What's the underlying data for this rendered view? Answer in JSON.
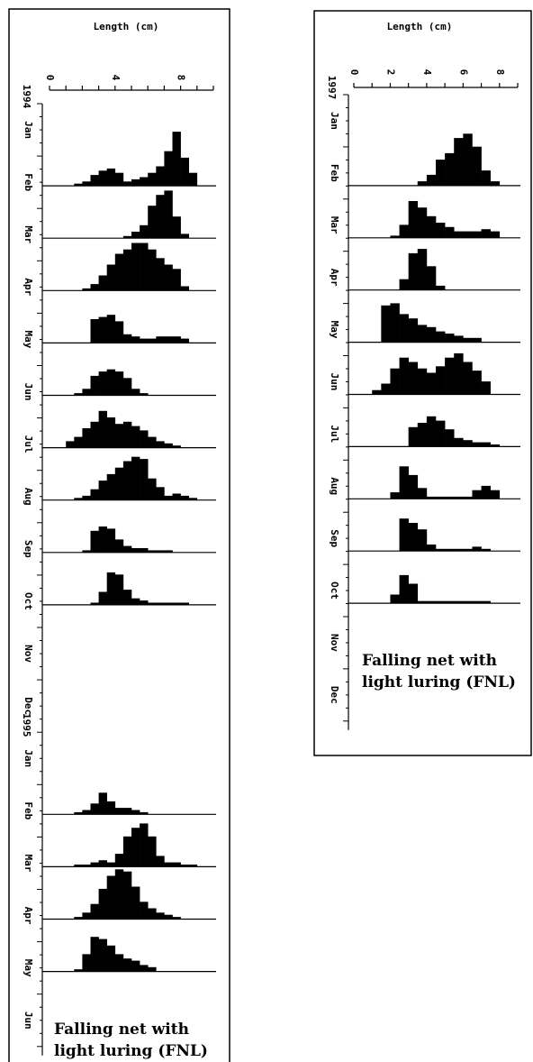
{
  "chart_data": [
    {
      "type": "bar",
      "title": "Length (cm)",
      "caption_lines": [
        "Falling net with",
        "light luring (FNL)"
      ],
      "x_ticks": [
        "0",
        "4",
        "8"
      ],
      "xlim": [
        0,
        10
      ],
      "bin_width": 0.5,
      "year_labels": [
        {
          "text": "1994",
          "before_month": 0
        },
        {
          "text": "1995",
          "before_month": 12
        }
      ],
      "months": [
        {
          "label": "Jan",
          "hist": null
        },
        {
          "label": "Feb",
          "hist": {
            "start": 1.5,
            "counts": [
              1,
              2,
              5,
              7,
              8,
              6,
              2,
              3,
              4,
              6,
              9,
              16,
              25,
              13,
              6
            ]
          }
        },
        {
          "label": "Mar",
          "hist": {
            "start": 4.5,
            "counts": [
              1,
              3,
              6,
              15,
              20,
              22,
              10,
              2
            ]
          }
        },
        {
          "label": "Apr",
          "hist": {
            "start": 2.0,
            "counts": [
              1,
              3,
              7,
              12,
              17,
              19,
              22,
              22,
              19,
              15,
              12,
              10,
              2
            ]
          }
        },
        {
          "label": "May",
          "hist": {
            "start": 2.5,
            "counts": [
              11,
              12,
              13,
              10,
              4,
              3,
              2,
              2,
              3,
              3,
              3,
              2
            ]
          }
        },
        {
          "label": "Jun",
          "hist": {
            "start": 1.5,
            "counts": [
              1,
              3,
              9,
              11,
              12,
              11,
              8,
              3,
              1
            ]
          }
        },
        {
          "label": "Jul",
          "hist": {
            "start": 1.0,
            "counts": [
              3,
              5,
              9,
              12,
              17,
              14,
              11,
              12,
              10,
              8,
              5,
              3,
              2,
              1
            ]
          }
        },
        {
          "label": "Aug",
          "hist": {
            "start": 1.5,
            "counts": [
              1,
              2,
              5,
              9,
              12,
              15,
              18,
              20,
              19,
              10,
              6,
              2,
              3,
              2,
              1
            ]
          }
        },
        {
          "label": "Sep",
          "hist": {
            "start": 2.0,
            "counts": [
              1,
              10,
              12,
              11,
              6,
              3,
              2,
              2,
              1,
              1,
              1
            ]
          }
        },
        {
          "label": "Oct",
          "hist": {
            "start": 2.5,
            "counts": [
              1,
              6,
              15,
              14,
              7,
              3,
              2,
              1,
              1,
              1,
              1,
              1
            ]
          }
        },
        {
          "label": "Nov",
          "hist": null
        },
        {
          "label": "Dec",
          "hist": null
        },
        {
          "label": "Jan",
          "hist": null
        },
        {
          "label": "Feb",
          "hist": {
            "start": 1.5,
            "counts": [
              1,
              2,
              5,
              10,
              6,
              3,
              3,
              2,
              1
            ]
          }
        },
        {
          "label": "Mar",
          "hist": {
            "start": 1.5,
            "counts": [
              1,
              1,
              2,
              3,
              2,
              6,
              14,
              18,
              20,
              14,
              5,
              2,
              2,
              1,
              1
            ]
          }
        },
        {
          "label": "Apr",
          "hist": {
            "start": 1.5,
            "counts": [
              1,
              3,
              7,
              14,
              20,
              23,
              22,
              15,
              8,
              5,
              3,
              2,
              1
            ]
          }
        },
        {
          "label": "May",
          "hist": {
            "start": 1.5,
            "counts": [
              1,
              8,
              16,
              15,
              12,
              8,
              6,
              5,
              3,
              2
            ]
          }
        },
        {
          "label": "Jun",
          "hist": null
        }
      ]
    },
    {
      "type": "bar",
      "title": "Length (cm)",
      "caption_lines": [
        "Falling net with",
        "light luring (FNL)"
      ],
      "x_ticks": [
        "0",
        "2",
        "4",
        "6",
        "8"
      ],
      "xlim": [
        0,
        9
      ],
      "bin_width": 0.5,
      "year_labels": [
        {
          "text": "1997",
          "before_month": 0
        }
      ],
      "months": [
        {
          "label": "Jan",
          "hist": null
        },
        {
          "label": "Feb",
          "hist": {
            "start": 3.5,
            "counts": [
              2,
              5,
              12,
              15,
              22,
              24,
              18,
              7,
              2
            ]
          }
        },
        {
          "label": "Mar",
          "hist": {
            "start": 2.0,
            "counts": [
              1,
              6,
              17,
              14,
              10,
              7,
              5,
              3,
              3,
              3,
              4,
              3
            ]
          }
        },
        {
          "label": "Apr",
          "hist": {
            "start": 2.5,
            "counts": [
              5,
              17,
              19,
              11,
              2
            ]
          }
        },
        {
          "label": "May",
          "hist": {
            "start": 1.5,
            "counts": [
              17,
              18,
              13,
              11,
              8,
              7,
              5,
              4,
              3,
              2,
              2
            ]
          }
        },
        {
          "label": "Jun",
          "hist": {
            "start": 1.0,
            "counts": [
              2,
              5,
              12,
              17,
              15,
              12,
              10,
              13,
              17,
              19,
              15,
              11,
              6
            ]
          }
        },
        {
          "label": "Jul",
          "hist": {
            "start": 3.0,
            "counts": [
              9,
              11,
              14,
              12,
              8,
              4,
              3,
              2,
              2,
              1
            ]
          }
        },
        {
          "label": "Aug",
          "hist": {
            "start": 2.0,
            "counts": [
              3,
              15,
              11,
              5,
              1,
              1,
              1,
              1,
              1,
              4,
              6,
              4
            ]
          }
        },
        {
          "label": "Sep",
          "hist": {
            "start": 2.5,
            "counts": [
              15,
              13,
              10,
              3,
              1,
              1,
              1,
              1,
              2,
              1
            ]
          }
        },
        {
          "label": "Oct",
          "hist": {
            "start": 2.0,
            "counts": [
              4,
              13,
              9,
              1,
              1,
              1,
              1,
              1,
              1,
              1,
              1
            ]
          }
        },
        {
          "label": "Nov",
          "hist": null
        },
        {
          "label": "Dec",
          "hist": null
        }
      ]
    }
  ]
}
